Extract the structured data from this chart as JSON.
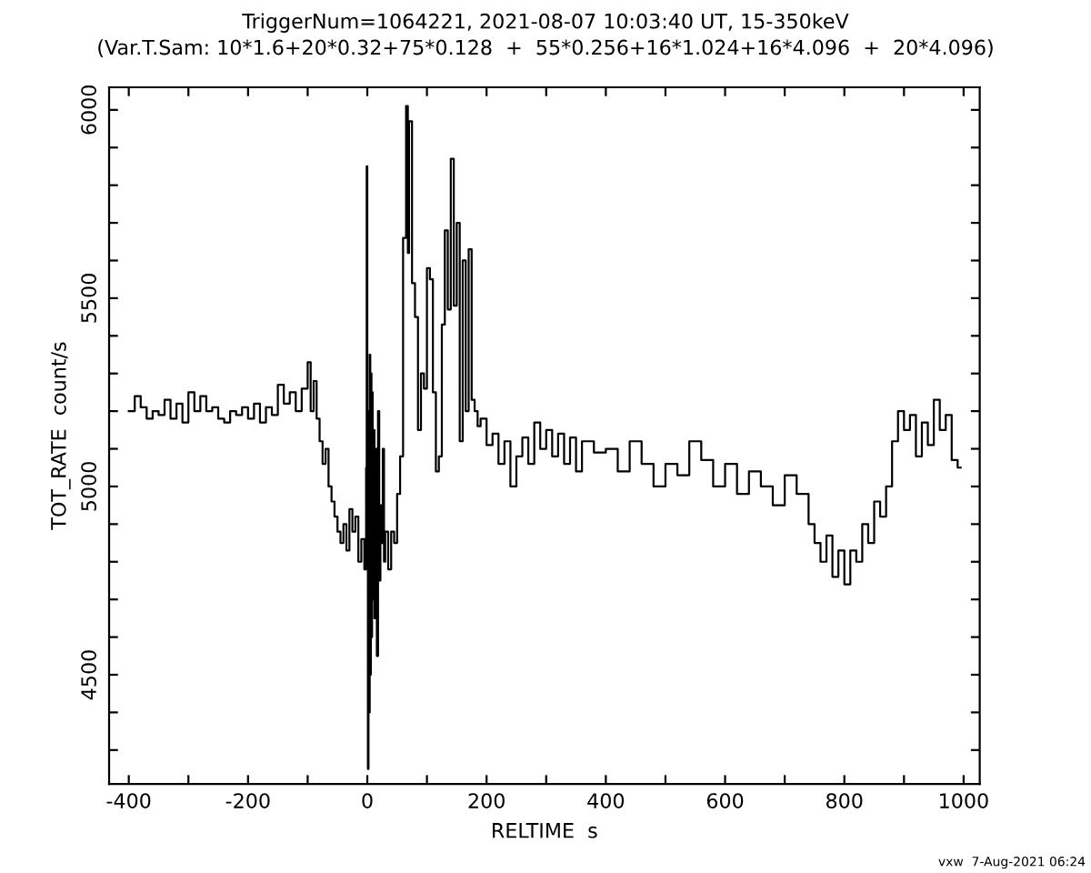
{
  "chart_data": {
    "type": "step",
    "title": "TriggerNum=1064221, 2021-08-07 10:03:40 UT, 15-350keV",
    "subtitle": "(Var.T.Sam: 10*1.6+20*0.32+75*0.128  +  55*0.256+16*1.024+16*4.096  +  20*4.096)",
    "xlabel": "RELTIME  s",
    "ylabel": "TOT_RATE  count/s",
    "annotations": [
      "vxw  7-Aug-2021 06:24"
    ],
    "series": [
      {
        "color": "#000000",
        "x": [
          -400,
          -390,
          -380,
          -370,
          -360,
          -350,
          -340,
          -330,
          -320,
          -310,
          -300,
          -290,
          -280,
          -270,
          -260,
          -250,
          -240,
          -230,
          -220,
          -210,
          -200,
          -190,
          -180,
          -170,
          -160,
          -150,
          -140,
          -130,
          -120,
          -110,
          -100,
          -95,
          -90,
          -85,
          -80,
          -75,
          -70,
          -65,
          -60,
          -55,
          -50,
          -45,
          -40,
          -35,
          -30,
          -25,
          -20,
          -15,
          -10,
          -5,
          -2,
          -1,
          0,
          1,
          2,
          3,
          4,
          5,
          6,
          7,
          8,
          9,
          10,
          12,
          14,
          16,
          18,
          20,
          22,
          24,
          26,
          28,
          30,
          35,
          40,
          45,
          50,
          55,
          60,
          65,
          68,
          70,
          75,
          80,
          85,
          90,
          95,
          100,
          105,
          110,
          115,
          120,
          125,
          130,
          135,
          140,
          145,
          150,
          155,
          160,
          165,
          170,
          175,
          180,
          185,
          190,
          200,
          210,
          220,
          230,
          240,
          250,
          260,
          270,
          280,
          290,
          300,
          310,
          320,
          330,
          340,
          350,
          360,
          380,
          400,
          420,
          440,
          460,
          480,
          500,
          520,
          540,
          560,
          580,
          600,
          620,
          640,
          660,
          680,
          700,
          720,
          740,
          750,
          760,
          770,
          780,
          790,
          800,
          810,
          820,
          830,
          840,
          850,
          860,
          870,
          880,
          890,
          900,
          910,
          920,
          930,
          940,
          950,
          960,
          970,
          980,
          990,
          995
        ],
        "values": [
          5200,
          5240,
          5210,
          5180,
          5200,
          5190,
          5230,
          5180,
          5220,
          5170,
          5250,
          5200,
          5240,
          5200,
          5210,
          5180,
          5170,
          5200,
          5190,
          5210,
          5180,
          5220,
          5170,
          5210,
          5190,
          5270,
          5220,
          5250,
          5200,
          5260,
          5330,
          5200,
          5280,
          5180,
          5120,
          5060,
          5100,
          5000,
          4960,
          4920,
          4880,
          4850,
          4900,
          4830,
          4940,
          4880,
          4920,
          4800,
          4860,
          4780,
          5050,
          5850,
          4900,
          4250,
          5200,
          4400,
          5350,
          4500,
          5300,
          4600,
          5250,
          4700,
          5150,
          4650,
          5100,
          4550,
          5200,
          4750,
          4950,
          4850,
          5100,
          4800,
          4880,
          4780,
          4880,
          4850,
          4980,
          5080,
          5660,
          6010,
          5620,
          5970,
          5540,
          5450,
          5150,
          5300,
          5260,
          5580,
          5550,
          5250,
          5040,
          5080,
          5430,
          5680,
          5470,
          5870,
          5480,
          5700,
          5120,
          5600,
          5200,
          5630,
          5230,
          5200,
          5160,
          5180,
          5110,
          5140,
          5060,
          5120,
          5000,
          5080,
          5130,
          5060,
          5170,
          5100,
          5150,
          5080,
          5140,
          5060,
          5130,
          5040,
          5120,
          5090,
          5100,
          5040,
          5120,
          5060,
          5000,
          5060,
          5030,
          5120,
          5070,
          5000,
          5060,
          4980,
          5040,
          5000,
          4950,
          5030,
          4980,
          4900,
          4850,
          4800,
          4870,
          4760,
          4830,
          4740,
          4830,
          4800,
          4900,
          4850,
          4960,
          4920,
          5000,
          5120,
          5200,
          5150,
          5190,
          5080,
          5170,
          5110,
          5230,
          5150,
          5190,
          5070,
          5050,
          5050
        ]
      }
    ],
    "xlim": [
      -433,
      1027
    ],
    "ylim": [
      4210,
      6060
    ],
    "xticks": [
      -400,
      {
        "value": -300,
        "label": null
      },
      -200,
      {
        "value": -100,
        "label": null
      },
      0,
      {
        "value": 100,
        "label": null
      },
      200,
      {
        "value": 300,
        "label": null
      },
      400,
      {
        "value": 500,
        "label": null
      },
      600,
      {
        "value": 700,
        "label": null
      },
      800,
      {
        "value": 900,
        "label": null
      },
      1000
    ],
    "yticks": [
      {
        "value": 4300,
        "label": null
      },
      {
        "value": 4400,
        "label": null
      },
      4500,
      {
        "value": 4600,
        "label": null
      },
      {
        "value": 4700,
        "label": null
      },
      {
        "value": 4800,
        "label": null
      },
      {
        "value": 4900,
        "label": null
      },
      5000,
      {
        "value": 5100,
        "label": null
      },
      {
        "value": 5200,
        "label": null
      },
      {
        "value": 5300,
        "label": null
      },
      {
        "value": 5400,
        "label": null
      },
      5500,
      {
        "value": 5600,
        "label": null
      },
      {
        "value": 5700,
        "label": null
      },
      {
        "value": 5800,
        "label": null
      },
      {
        "value": 5900,
        "label": null
      },
      6000
    ],
    "grid": false,
    "legend": false
  }
}
